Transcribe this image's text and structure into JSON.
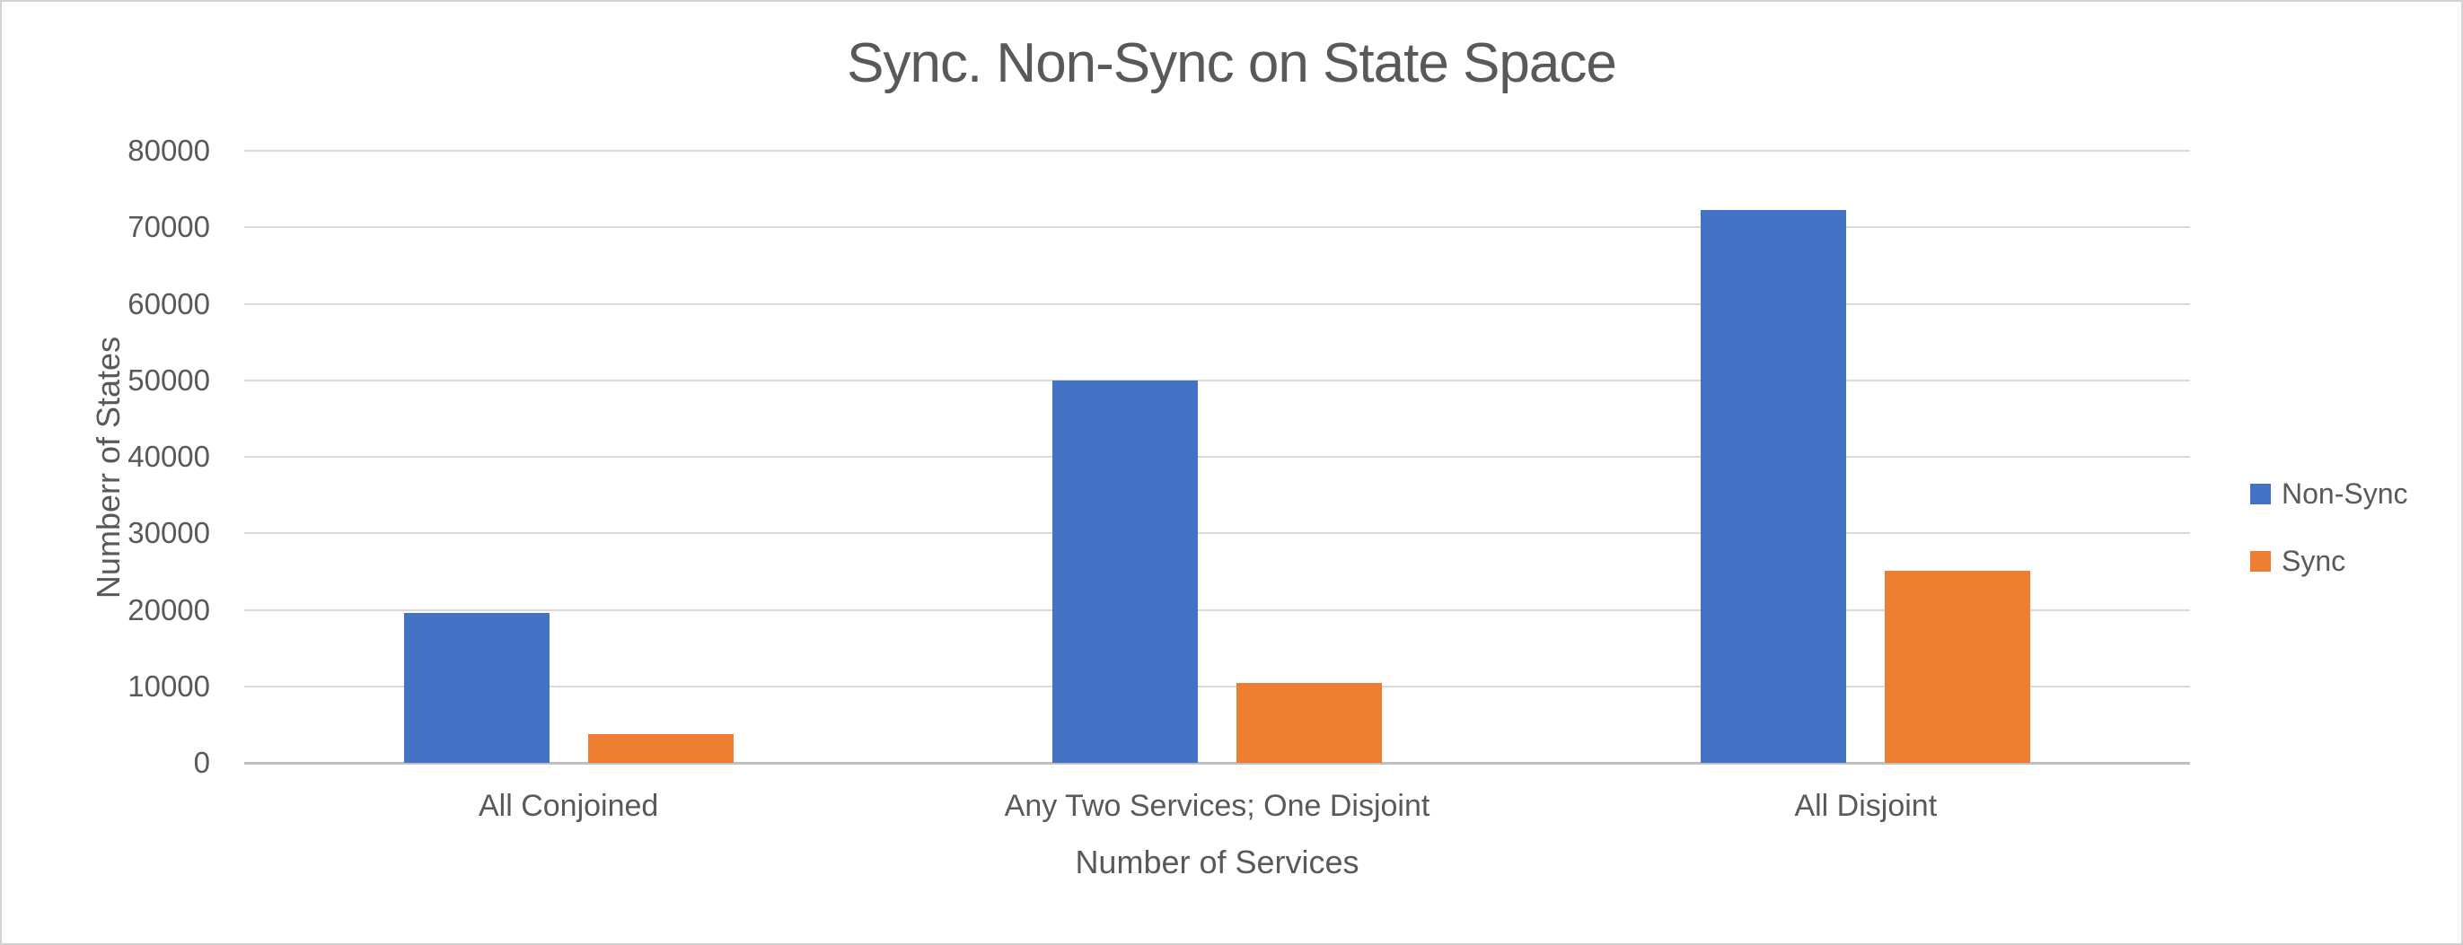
{
  "chart_data": {
    "type": "bar",
    "title": "Sync. Non-Sync on State Space",
    "xlabel": "Number of Services",
    "ylabel": "Numberr of States",
    "categories": [
      "All Conjoined",
      "Any Two Services; One Disjoint",
      "All Disjoint"
    ],
    "series": [
      {
        "name": "Non-Sync",
        "color": "#4472C4",
        "values": [
          19600,
          50000,
          72300
        ]
      },
      {
        "name": "Sync",
        "color": "#ED7D31",
        "values": [
          3700,
          10400,
          25100
        ]
      }
    ],
    "ylim": [
      0,
      80000
    ],
    "yticks": [
      0,
      10000,
      20000,
      30000,
      40000,
      50000,
      60000,
      70000,
      80000
    ],
    "grid": "horizontal-only",
    "legend_position": "right-middle",
    "text_color": "#595959",
    "gridline_color": "#D9D9D9",
    "axis_line_color": "#BFBFBF",
    "background_color": "#FFFFFF",
    "border_color": "#D2D2D2"
  }
}
